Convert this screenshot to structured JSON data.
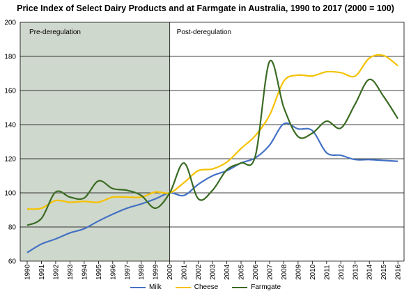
{
  "chart_data": {
    "type": "line",
    "title": "Price Index of Select Dairy Products and at Farmgate in Australia, 1990 to 2017 (2000 = 100)",
    "xlabel": "",
    "ylabel": "",
    "x": [
      "1990",
      "1991",
      "1992",
      "1993",
      "1994",
      "1995",
      "1996",
      "1997",
      "1998",
      "1999",
      "2000",
      "2001",
      "2002",
      "2003",
      "2004",
      "2005",
      "2006",
      "2007",
      "2008",
      "2009",
      "2010",
      "2011",
      "2012",
      "2013",
      "2014",
      "2015",
      "2016"
    ],
    "ylim": [
      60,
      200
    ],
    "yticks": [
      60,
      80,
      100,
      120,
      140,
      160,
      180,
      200
    ],
    "grid": "horizontal",
    "legend_position": "bottom",
    "shaded_period": {
      "from": "1990",
      "to": "2000",
      "color": "#cfd8cc"
    },
    "period_labels": {
      "left": "Pre-deregulation",
      "right": "Post-deregulation"
    },
    "series": [
      {
        "name": "Milk",
        "color": "#4472c4",
        "values": [
          65,
          70,
          73,
          76.5,
          79,
          83.5,
          87.5,
          91,
          93.5,
          96.5,
          100,
          98.5,
          105,
          110,
          113,
          117.5,
          120.5,
          128,
          140.5,
          137.5,
          136.5,
          123.5,
          122,
          119.5,
          119.5,
          119,
          118.5
        ]
      },
      {
        "name": "Cheese",
        "color": "#f5c200",
        "values": [
          90.5,
          91,
          95.5,
          94.5,
          95,
          94.5,
          97.5,
          97.5,
          97.5,
          100.5,
          100,
          106,
          113,
          114,
          118,
          126,
          133.5,
          145.5,
          165.5,
          169,
          168.5,
          171,
          170.5,
          168.5,
          179,
          180.5,
          174.5
        ]
      },
      {
        "name": "Farmgate",
        "color": "#3a6b23",
        "values": [
          81,
          85,
          100.5,
          97.5,
          97,
          107,
          102.5,
          101.5,
          98.5,
          91,
          100,
          117.5,
          96.5,
          101.5,
          113.5,
          117.5,
          121.5,
          177,
          150,
          133,
          135,
          142,
          138,
          152,
          166.5,
          156.5,
          143.5
        ]
      }
    ]
  }
}
